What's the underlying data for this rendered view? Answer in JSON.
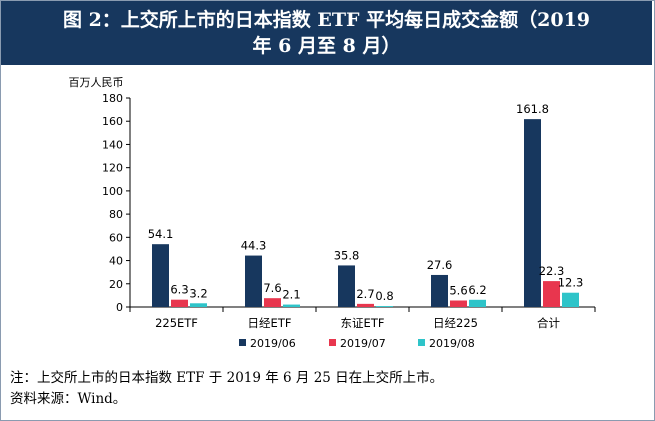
{
  "header": {
    "title": "图 2：上交所上市的日本指数 ETF 平均每日成交金额（2019\n年 6 月至 8 月）"
  },
  "chart_data": {
    "type": "bar",
    "ylabel": "百万人民币",
    "ylim": [
      0,
      180
    ],
    "yticks": [
      0,
      20,
      40,
      60,
      80,
      100,
      120,
      140,
      160,
      180
    ],
    "categories": [
      "225ETF",
      "日经ETF",
      "东证ETF",
      "日经225",
      "合计"
    ],
    "series": [
      {
        "name": "2019/06",
        "color": "#17375e",
        "values": [
          54.1,
          44.3,
          35.8,
          27.6,
          161.8
        ]
      },
      {
        "name": "2019/07",
        "color": "#e8364e",
        "values": [
          6.3,
          7.6,
          2.7,
          5.6,
          22.3
        ]
      },
      {
        "name": "2019/08",
        "color": "#2ec4c9",
        "values": [
          3.2,
          2.1,
          0.8,
          6.2,
          12.3
        ]
      }
    ],
    "labels": [
      [
        "54.1",
        "44.3",
        "35.8",
        "27.6",
        "161.8"
      ],
      [
        "6.3",
        "7.6",
        "2.7",
        "5.6",
        "22.3"
      ],
      [
        "3.2",
        "2.1",
        "0.8",
        "6.2",
        "12.3"
      ]
    ],
    "legend_position": "bottom",
    "grid": false
  },
  "notes": {
    "note": "注：上交所上市的日本指数 ETF 于 2019 年 6 月 25 日在上交所上市。",
    "source": "资料来源：Wind。"
  }
}
